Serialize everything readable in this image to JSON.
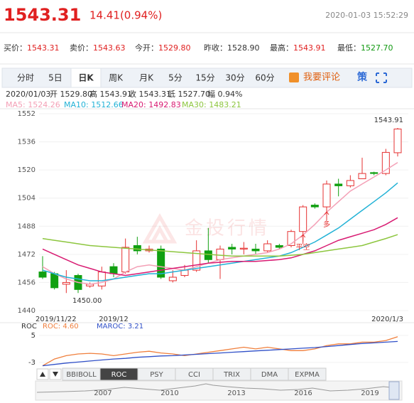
{
  "header": {
    "price": "1543.31",
    "change": "14.41(0.94%)",
    "datetime": "2020-01-03 15:52:29"
  },
  "quotes": [
    {
      "label": "买价：",
      "value": "1543.31",
      "color": "#e02020"
    },
    {
      "label": "卖价：",
      "value": "1543.63",
      "color": "#e02020"
    },
    {
      "label": "今开：",
      "value": "1529.80",
      "color": "#e02020"
    },
    {
      "label": "昨收：",
      "value": "1528.90",
      "color": "#333333"
    },
    {
      "label": "最高：",
      "value": "1543.91",
      "color": "#e02020"
    },
    {
      "label": "最低：",
      "value": "1527.70",
      "color": "#119911"
    }
  ],
  "tabs": [
    {
      "label": "分时"
    },
    {
      "label": "5日"
    },
    {
      "label": "日K",
      "active": true
    },
    {
      "label": "周K"
    },
    {
      "label": "月K"
    },
    {
      "label": "5分"
    },
    {
      "label": "15分"
    },
    {
      "label": "30分"
    },
    {
      "label": "60分"
    }
  ],
  "comment": "我要评论",
  "strategy": "策",
  "info": [
    "2020/01/03",
    "开 1529.80",
    "高 1543.91",
    "收 1543.31",
    "低 1527.70",
    "幅 0.94%"
  ],
  "watermark": "金投行情",
  "chart_data": [
    {
      "type": "candlestick",
      "categories": [
        "2019/11/22",
        null,
        null,
        null,
        null,
        null,
        "2019/12",
        null,
        null,
        null,
        null,
        null,
        null,
        null,
        null,
        null,
        null,
        null,
        null,
        null,
        null,
        null,
        null,
        null,
        null,
        null,
        null,
        null,
        null,
        null,
        "2020/1/3"
      ],
      "open": [
        1462,
        1461,
        1455,
        1460,
        1454,
        1454,
        1465,
        1462,
        1477,
        1474,
        1475,
        1457,
        1460,
        1463,
        1474,
        1469,
        1476,
        1475,
        1475,
        1474,
        1477,
        1477,
        1485,
        1500,
        1499,
        1512,
        1511,
        1515,
        1518.5,
        1518,
        1529.8
      ],
      "high": [
        1471,
        1462,
        1463,
        1461,
        1456,
        1465,
        1467,
        1481,
        1482,
        1477,
        1477,
        1463,
        1466,
        1480,
        1487,
        1477,
        1478,
        1479,
        1478,
        1480,
        1478,
        1486,
        1500,
        1501,
        1514,
        1515,
        1517,
        1527,
        1519,
        1532,
        1543.91
      ],
      "low": [
        1458,
        1452,
        1450,
        1450,
        1453,
        1452,
        1459,
        1461,
        1472,
        1473,
        1458,
        1456,
        1459,
        1462,
        1467,
        1458,
        1472,
        1472,
        1472,
        1473,
        1475,
        1476,
        1478,
        1498,
        1494,
        1505,
        1510,
        1515,
        1517,
        1517,
        1527.7
      ],
      "close": [
        1459,
        1453,
        1456,
        1452,
        1455,
        1462,
        1461,
        1476,
        1474,
        1475,
        1459,
        1459,
        1463,
        1474,
        1469,
        1475,
        1475,
        1475.5,
        1474,
        1478,
        1476,
        1485,
        1499,
        1499,
        1512,
        1511,
        1514,
        1518,
        1518,
        1530,
        1543.31
      ],
      "up_color": "#e63232",
      "down_color": "#11a011",
      "ylim": [
        1440,
        1552
      ],
      "yticks": [
        1440,
        1456,
        1472,
        1488,
        1504,
        1520,
        1536,
        1552
      ],
      "grid": true,
      "series": [
        {
          "name": "MA5: 1524.26",
          "color": "#f4a0b6",
          "values": [
            1465,
            1461,
            1458,
            1456,
            1455,
            1456,
            1458,
            1462,
            1465,
            1466,
            1465,
            1464,
            1463,
            1465,
            1467,
            1469,
            1470,
            1471,
            1472,
            1473,
            1475,
            1478,
            1483,
            1489,
            1496,
            1502,
            1508,
            1512,
            1516,
            1520,
            1524.26
          ]
        },
        {
          "name": "MA10: 1512.66",
          "color": "#22b2d6",
          "values": [
            1463,
            1461,
            1459,
            1458,
            1457,
            1457,
            1458,
            1459,
            1460,
            1461,
            1461,
            1462,
            1463,
            1464,
            1465,
            1466,
            1467,
            1468,
            1469,
            1470,
            1471,
            1473,
            1476,
            1479,
            1483,
            1487,
            1492,
            1497,
            1502,
            1507,
            1512.66
          ]
        },
        {
          "name": "MA20: 1492.83",
          "color": "#d81b72",
          "values": [
            1475,
            1472,
            1469,
            1466,
            1464,
            1462,
            1461,
            1460,
            1461,
            1462,
            1463,
            1464,
            1465,
            1466,
            1467,
            1467.5,
            1468,
            1468,
            1468,
            1468.5,
            1469,
            1470,
            1472,
            1474,
            1477,
            1480,
            1482,
            1484,
            1486,
            1489,
            1492.83
          ]
        },
        {
          "name": "MA30: 1483.21",
          "color": "#8dc63f",
          "values": [
            1481,
            1480,
            1479,
            1478,
            1477,
            1476.5,
            1476,
            1475.5,
            1475,
            1474.5,
            1474,
            1473.5,
            1473,
            1472.5,
            1472,
            1471.5,
            1471,
            1471,
            1471,
            1471,
            1471,
            1471.5,
            1472,
            1473,
            1474,
            1475,
            1476,
            1477,
            1479,
            1481,
            1483.21
          ]
        }
      ],
      "annotations": {
        "high": "1543.91",
        "low": "1450.00",
        "long": "多",
        "close_short": "平空"
      }
    },
    {
      "type": "line",
      "title": "ROC",
      "ylim": [
        -4.3,
        7.1
      ],
      "yticks": [
        5,
        -3
      ],
      "series": [
        {
          "name": "ROC: 4.60",
          "color": "#f07f3c",
          "values": [
            -4,
            -2,
            -1,
            -0.5,
            -0.3,
            -0.5,
            -1,
            -0.5,
            0,
            0.3,
            -0.2,
            -0.5,
            -1,
            -0.5,
            0,
            0.5,
            1,
            1.5,
            1,
            1.5,
            1,
            0.5,
            0.5,
            1,
            2,
            2.5,
            2.5,
            3,
            3,
            3.5,
            4.6
          ]
        },
        {
          "name": "MAROC: 3.21",
          "color": "#3050c8",
          "values": [
            -4,
            -3.6,
            -3.2,
            -2.9,
            -2.6,
            -2.3,
            -2,
            -1.8,
            -1.5,
            -1.3,
            -1.1,
            -1,
            -0.8,
            -0.6,
            -0.4,
            -0.2,
            0,
            0.2,
            0.4,
            0.6,
            0.8,
            1,
            1.2,
            1.4,
            1.7,
            2,
            2.3,
            2.6,
            2.8,
            3,
            3.21
          ]
        }
      ]
    }
  ],
  "indicator_tabs": [
    {
      "label": "BBIBOLL"
    },
    {
      "label": "ROC",
      "active": true
    },
    {
      "label": "PSY"
    },
    {
      "label": "CCI"
    },
    {
      "label": "TRIX"
    },
    {
      "label": "DMA"
    },
    {
      "label": "EXPMA"
    }
  ],
  "timeline_years": [
    "2007",
    "2010",
    "2013",
    "2016",
    "2019"
  ]
}
